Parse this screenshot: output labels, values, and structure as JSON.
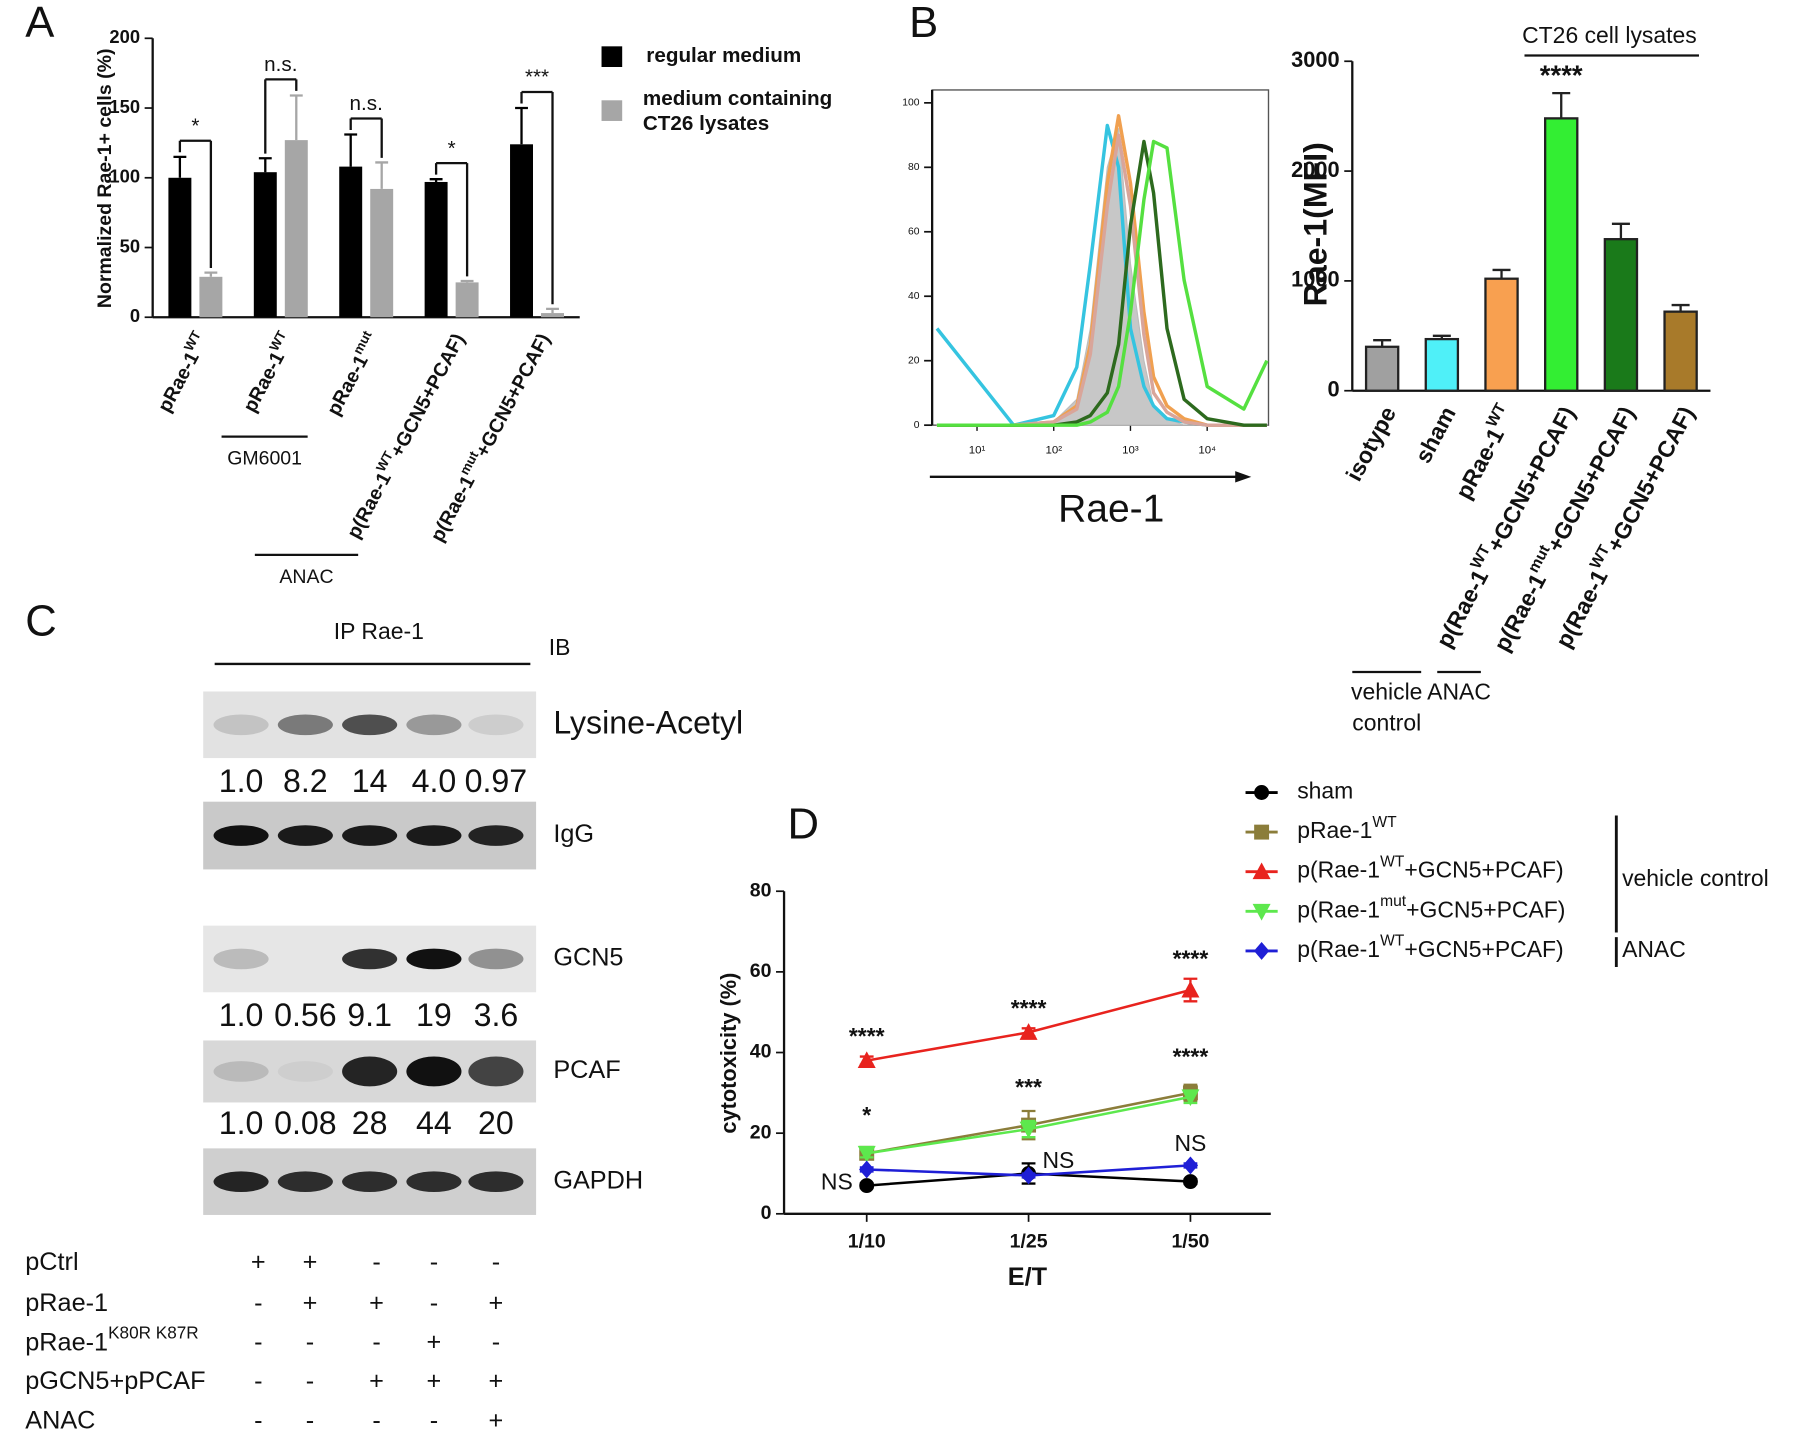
{
  "chart_data": [
    {
      "panel": "A",
      "type": "bar",
      "ylabel": "Normalized Rae-1+ cells (%)",
      "categories": [
        {
          "base": "pRae-1",
          "sup": "WT"
        },
        {
          "base": "pRae-1",
          "sup": "WT"
        },
        {
          "base": "pRae-1",
          "sup": "mut"
        },
        {
          "base": "p(Rae-1",
          "sup": "WT",
          "tail": "+GCN5+PCAF)"
        },
        {
          "base": "p(Rae-1",
          "sup": "mut",
          "tail": "+GCN5+PCAF)"
        }
      ],
      "series": [
        {
          "name": "regular medium",
          "color": "#000000",
          "values": [
            100,
            104,
            108,
            97,
            124
          ],
          "errors": [
            15,
            10,
            23,
            2,
            26
          ]
        },
        {
          "name": "medium containing CT26 lysates",
          "color": "#a6a6a6",
          "values": [
            29,
            127,
            92,
            25,
            3
          ],
          "errors": [
            3,
            32,
            19,
            1,
            3
          ]
        }
      ],
      "significance": [
        "*",
        "n.s.",
        "n.s.",
        "*",
        "***"
      ],
      "group_labels": [
        "GM6001",
        "ANAC"
      ],
      "ylim": [
        0,
        200
      ],
      "yticks": [
        0,
        50,
        100,
        150,
        200
      ]
    },
    {
      "panel": "B",
      "type": "line",
      "xlabel": "Rae-1",
      "xlog": true,
      "x": [
        3,
        30,
        100,
        200,
        300,
        500,
        700,
        1000,
        1500,
        2000,
        3000,
        5000,
        10000,
        30000,
        60000
      ],
      "series": [
        {
          "color": "#bdbdbd",
          "filled": true,
          "values": [
            0,
            0,
            1,
            8,
            30,
            80,
            92,
            50,
            20,
            6,
            2,
            0,
            0,
            0,
            0
          ]
        },
        {
          "color": "#35c4e0",
          "values": [
            30,
            0,
            3,
            18,
            50,
            93,
            80,
            30,
            12,
            6,
            2,
            1,
            0,
            0,
            0
          ]
        },
        {
          "color": "#f0a050",
          "values": [
            0,
            0,
            1,
            6,
            25,
            75,
            96,
            75,
            35,
            15,
            6,
            2,
            0,
            0,
            0
          ]
        },
        {
          "color": "#d9a59a",
          "values": [
            0,
            0,
            1,
            5,
            22,
            68,
            90,
            68,
            28,
            10,
            4,
            1,
            0,
            0,
            0
          ]
        },
        {
          "color": "#2d6a1e",
          "values": [
            0,
            0,
            0,
            1,
            3,
            10,
            25,
            62,
            88,
            72,
            30,
            8,
            2,
            0,
            0
          ]
        },
        {
          "color": "#55e040",
          "values": [
            0,
            0,
            0,
            0,
            1,
            4,
            12,
            35,
            70,
            88,
            86,
            45,
            12,
            5,
            20
          ]
        }
      ],
      "xlim": [
        2.6,
        63000
      ],
      "xticks": [
        {
          "value": 10,
          "label": "10¹"
        },
        {
          "value": 100,
          "label": "10²"
        },
        {
          "value": 1000,
          "label": "10³"
        },
        {
          "value": 10000,
          "label": "10⁴"
        }
      ],
      "ylim": [
        0,
        104
      ],
      "yticks": [
        0,
        20,
        40,
        60,
        80,
        100
      ]
    },
    {
      "type": "bar",
      "ylabel": "Rae-1(MFI)",
      "categories": [
        "isotype",
        "sham",
        {
          "base": "pRae-1",
          "sup": "WT"
        },
        {
          "base": "p(Rae-1",
          "sup": "WT",
          "tail": "+GCN5+PCAF)"
        },
        {
          "base": "p(Rae-1",
          "sup": "mut",
          "tail": "+GCN5+PCAF)"
        },
        {
          "base": "p(Rae-1",
          "sup": "WT",
          "tail": "+GCN5+PCAF)"
        }
      ],
      "values": [
        400,
        470,
        1020,
        2480,
        1380,
        720
      ],
      "errors": [
        60,
        30,
        80,
        230,
        140,
        60
      ],
      "colors": [
        "#a0a0a0",
        "#4ff0f8",
        "#f8a050",
        "#33ee33",
        "#1a7a1a",
        "#a87a2a"
      ],
      "significance": [
        null,
        null,
        null,
        "****",
        null,
        null
      ],
      "bracket_label": "CT26 cell lysates",
      "group_labels": [
        "vehicle control",
        "ANAC"
      ],
      "ylim": [
        0,
        3000
      ],
      "yticks": [
        0,
        1000,
        2000,
        3000
      ]
    },
    {
      "panel": "D",
      "type": "line",
      "xlabel": "E/T",
      "ylabel": "cytotoxicity (%)",
      "categories": [
        "1/10",
        "1/25",
        "1/50"
      ],
      "series": [
        {
          "name": "sham",
          "color": "#000000",
          "marker": "circle",
          "values": [
            7,
            10,
            8
          ],
          "errors": [
            0.6,
            2.5,
            0.6
          ]
        },
        {
          "name": {
            "base": "pRae-1",
            "sup": "WT"
          },
          "color": "#8b7d3a",
          "marker": "square",
          "values": [
            15,
            22,
            30
          ],
          "errors": [
            1.5,
            3.5,
            2
          ]
        },
        {
          "name": {
            "base": "p(Rae-1",
            "sup": "WT",
            "tail": "+GCN5+PCAF)"
          },
          "color": "#e8231e",
          "marker": "triangle",
          "values": [
            38,
            45,
            55.5
          ],
          "errors": [
            1,
            1,
            2.8
          ],
          "significance": [
            "****",
            "****",
            "****"
          ]
        },
        {
          "name": {
            "base": "p(Rae-1",
            "sup": "mut",
            "tail": "+GCN5+PCAF)"
          },
          "color": "#5de84d",
          "marker": "triangle-down",
          "values": [
            15,
            21,
            29
          ],
          "errors": [
            1,
            2,
            1.5
          ],
          "significance": [
            "*",
            "***",
            "****"
          ]
        },
        {
          "name": {
            "base": "p(Rae-1",
            "sup": "WT",
            "tail": "+GCN5+PCAF)"
          },
          "color": "#1f1fd6",
          "marker": "diamond",
          "values": [
            11,
            9.5,
            12
          ],
          "errors": [
            0.5,
            0.5,
            0.5
          ],
          "significance": [
            "NS",
            "NS",
            "NS"
          ]
        }
      ],
      "legend_groups": [
        "vehicle control",
        "ANAC"
      ],
      "ylim": [
        0,
        80
      ],
      "yticks": [
        0,
        20,
        40,
        60,
        80
      ]
    }
  ],
  "blot": {
    "panel": "C",
    "title": "IP Rae-1",
    "ib": "IB",
    "rows": [
      {
        "label": "Lysine-Acetyl",
        "quant": [
          "1.0",
          "8.2",
          "14",
          "4.0",
          "0.97"
        ]
      },
      {
        "label": "IgG"
      },
      {
        "label": "GCN5",
        "quant": [
          "1.0",
          "0.56",
          "9.1",
          "19",
          "3.6"
        ]
      },
      {
        "label": "PCAF",
        "quant": [
          "1.0",
          "0.08",
          "28",
          "44",
          "20"
        ]
      },
      {
        "label": "GAPDH"
      }
    ],
    "conditions": [
      {
        "label": "pCtrl",
        "marks": [
          "+",
          "+",
          "-",
          "-",
          "-"
        ]
      },
      {
        "label": "pRae-1",
        "marks": [
          "-",
          "+",
          "+",
          "-",
          "+"
        ]
      },
      {
        "label": {
          "base": "pRae-1",
          "sup": "K80R K87R"
        },
        "marks": [
          "-",
          "-",
          "-",
          "+",
          "-"
        ]
      },
      {
        "label": "pGCN5+pPCAF",
        "marks": [
          "-",
          "-",
          "+",
          "+",
          "+"
        ]
      },
      {
        "label": "ANAC",
        "marks": [
          "-",
          "-",
          "-",
          "-",
          "+"
        ]
      }
    ]
  }
}
